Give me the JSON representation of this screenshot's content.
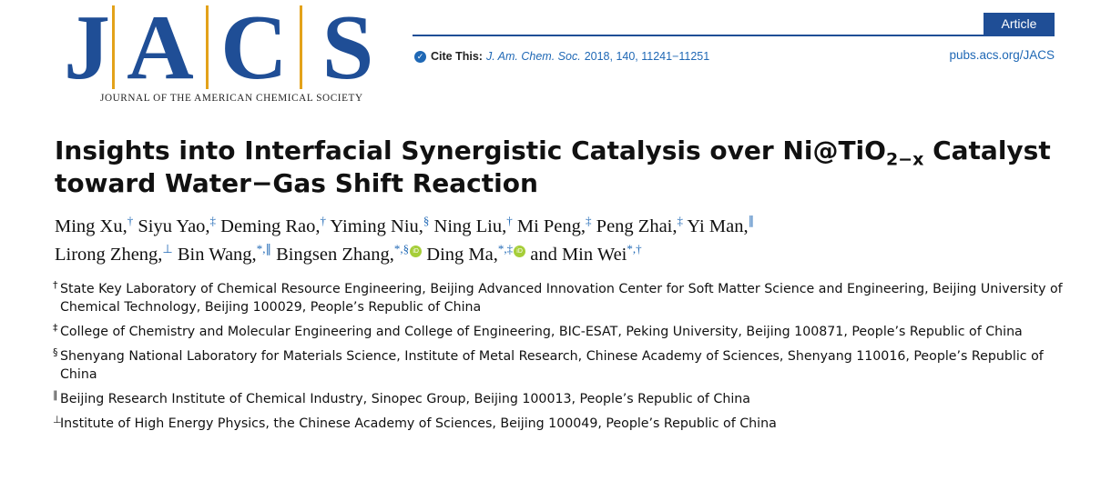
{
  "header": {
    "logo_letters": [
      "J",
      "A",
      "C",
      "S"
    ],
    "logo_subtitle": "JOURNAL OF THE AMERICAN CHEMICAL SOCIETY",
    "badge": "Article",
    "cite_label": "Cite This:",
    "cite_journal": "J. Am. Chem. Soc.",
    "cite_ref": "2018, 140, 11241−11251",
    "pubs_link": "pubs.acs.org/JACS",
    "accent_color": "#1f4e96",
    "logo_bar_color": "#e3a21a"
  },
  "title": {
    "line1_pre": "Insights into Interfacial Synergistic Catalysis over Ni@TiO",
    "line1_sub": "2−x",
    "line1_post": " Catalyst",
    "line2": "toward Water−Gas Shift Reaction"
  },
  "authors": [
    {
      "name": "Ming Xu,",
      "sup": "†"
    },
    {
      "name": "Siyu Yao,",
      "sup": "‡"
    },
    {
      "name": "Deming Rao,",
      "sup": "†"
    },
    {
      "name": "Yiming Niu,",
      "sup": "§"
    },
    {
      "name": "Ning Liu,",
      "sup": "†"
    },
    {
      "name": "Mi Peng,",
      "sup": "‡"
    },
    {
      "name": "Peng Zhai,",
      "sup": "‡"
    },
    {
      "name": "Yi Man,",
      "sup": "∥"
    },
    {
      "name": "Lirong Zheng,",
      "sup": "⊥"
    },
    {
      "name": "Bin Wang,",
      "sup": "*,∥"
    },
    {
      "name": "Bingsen Zhang,",
      "sup": "*,§"
    },
    {
      "name": "Ding Ma,",
      "sup": "*,‡"
    },
    {
      "name": "and Min Wei",
      "sup": "*,†"
    }
  ],
  "affiliations": [
    {
      "mark": "†",
      "text": "State Key Laboratory of Chemical Resource Engineering, Beijing Advanced Innovation Center for Soft Matter Science and Engineering, Beijing University of Chemical Technology, Beijing 100029, People’s Republic of China"
    },
    {
      "mark": "‡",
      "text": "College of Chemistry and Molecular Engineering and College of Engineering, BIC-ESAT, Peking University, Beijing 100871, People’s Republic of China"
    },
    {
      "mark": "§",
      "text": "Shenyang National Laboratory for Materials Science, Institute of Metal Research, Chinese Academy of Sciences, Shenyang 110016, People’s Republic of China"
    },
    {
      "mark": "∥",
      "text": "Beijing Research Institute of Chemical Industry, Sinopec Group, Beijing 100013, People’s Republic of China"
    },
    {
      "mark": "⊥",
      "text": "Institute of High Energy Physics, the Chinese Academy of Sciences, Beijing 100049, People’s Republic of China"
    }
  ]
}
